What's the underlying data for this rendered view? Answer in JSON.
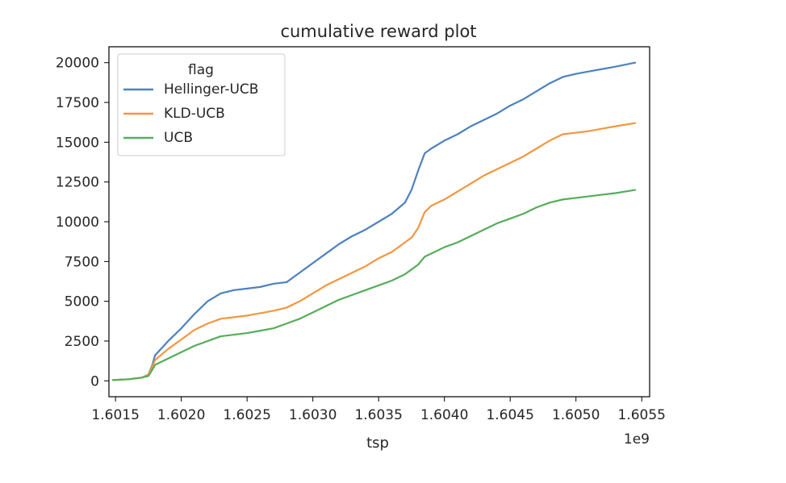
{
  "chart_data": {
    "type": "line",
    "title": "cumulative reward plot",
    "xlabel": "tsp",
    "ylabel": "",
    "x_offset_label": "1e9",
    "xlim": [
      1.60145,
      1.60556
    ],
    "ylim": [
      -1000,
      21000
    ],
    "x_ticks": [
      1.6015,
      1.602,
      1.6025,
      1.603,
      1.6035,
      1.604,
      1.6045,
      1.605,
      1.6055
    ],
    "x_tick_labels": [
      "1.6015",
      "1.6020",
      "1.6025",
      "1.6030",
      "1.6035",
      "1.6040",
      "1.6045",
      "1.6050",
      "1.6055"
    ],
    "y_ticks": [
      0,
      2500,
      5000,
      7500,
      10000,
      12500,
      15000,
      17500,
      20000
    ],
    "y_tick_labels": [
      "0",
      "2500",
      "5000",
      "7500",
      "10000",
      "12500",
      "15000",
      "17500",
      "20000"
    ],
    "grid": false,
    "legend": {
      "title": "flag",
      "position": "top-left"
    },
    "series": [
      {
        "name": "Hellinger-UCB",
        "color": "#4c82bf",
        "x": [
          1.60148,
          1.6016,
          1.6017,
          1.60175,
          1.60178,
          1.6018,
          1.6019,
          1.602,
          1.6021,
          1.6022,
          1.6023,
          1.6024,
          1.6025,
          1.6026,
          1.6027,
          1.6028,
          1.6029,
          1.603,
          1.6031,
          1.6032,
          1.6033,
          1.6034,
          1.6035,
          1.6036,
          1.6037,
          1.60375,
          1.6038,
          1.60385,
          1.6039,
          1.604,
          1.6041,
          1.6042,
          1.6043,
          1.6044,
          1.6045,
          1.6046,
          1.6047,
          1.6048,
          1.6049,
          1.605,
          1.6051,
          1.6052,
          1.6053,
          1.60545
        ],
        "y": [
          50,
          100,
          200,
          400,
          1000,
          1600,
          2500,
          3300,
          4200,
          5000,
          5500,
          5700,
          5800,
          5900,
          6100,
          6200,
          6800,
          7400,
          8000,
          8600,
          9100,
          9500,
          10000,
          10500,
          11200,
          12000,
          13200,
          14300,
          14600,
          15100,
          15500,
          16000,
          16400,
          16800,
          17300,
          17700,
          18200,
          18700,
          19100,
          19300,
          19450,
          19600,
          19750,
          20000
        ]
      },
      {
        "name": "KLD-UCB",
        "color": "#f5963f",
        "x": [
          1.60148,
          1.6016,
          1.6017,
          1.60175,
          1.60178,
          1.6018,
          1.6019,
          1.602,
          1.6021,
          1.6022,
          1.6023,
          1.6024,
          1.6025,
          1.6026,
          1.6027,
          1.6028,
          1.6029,
          1.603,
          1.6031,
          1.6032,
          1.6033,
          1.6034,
          1.6035,
          1.6036,
          1.6037,
          1.60375,
          1.6038,
          1.60385,
          1.6039,
          1.604,
          1.6041,
          1.6042,
          1.6043,
          1.6044,
          1.6045,
          1.6046,
          1.6047,
          1.6048,
          1.6049,
          1.605,
          1.6051,
          1.6052,
          1.6053,
          1.60545
        ],
        "y": [
          50,
          100,
          200,
          400,
          900,
          1300,
          2000,
          2600,
          3200,
          3600,
          3900,
          4000,
          4100,
          4250,
          4400,
          4600,
          5000,
          5500,
          6000,
          6400,
          6800,
          7200,
          7700,
          8100,
          8700,
          9000,
          9600,
          10600,
          11000,
          11400,
          11900,
          12400,
          12900,
          13300,
          13700,
          14100,
          14600,
          15100,
          15500,
          15600,
          15700,
          15850,
          16000,
          16200
        ]
      },
      {
        "name": "UCB",
        "color": "#56ad5a",
        "x": [
          1.60148,
          1.6016,
          1.6017,
          1.60175,
          1.60178,
          1.6018,
          1.6019,
          1.602,
          1.6021,
          1.6022,
          1.6023,
          1.6024,
          1.6025,
          1.6026,
          1.6027,
          1.6028,
          1.6029,
          1.603,
          1.6031,
          1.6032,
          1.6033,
          1.6034,
          1.6035,
          1.6036,
          1.6037,
          1.60375,
          1.6038,
          1.60385,
          1.6039,
          1.604,
          1.6041,
          1.6042,
          1.6043,
          1.6044,
          1.6045,
          1.6046,
          1.6047,
          1.6048,
          1.6049,
          1.605,
          1.6051,
          1.6052,
          1.6053,
          1.60545
        ],
        "y": [
          50,
          100,
          200,
          300,
          700,
          1000,
          1400,
          1800,
          2200,
          2500,
          2800,
          2900,
          3000,
          3150,
          3300,
          3600,
          3900,
          4300,
          4700,
          5100,
          5400,
          5700,
          6000,
          6300,
          6700,
          7000,
          7300,
          7800,
          8000,
          8400,
          8700,
          9100,
          9500,
          9900,
          10200,
          10500,
          10900,
          11200,
          11400,
          11500,
          11600,
          11700,
          11800,
          12000
        ]
      }
    ]
  }
}
